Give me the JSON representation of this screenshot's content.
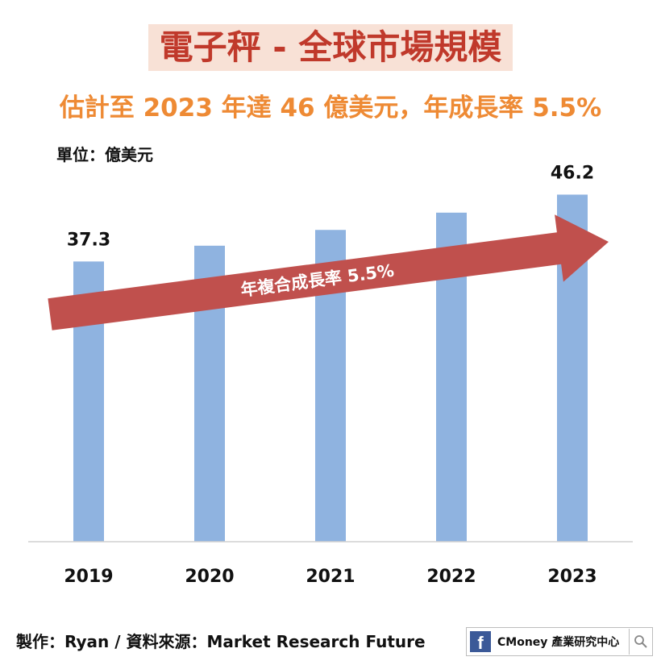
{
  "title": "電子秤 - 全球市場規模",
  "subtitle": "估計至 2023 年達 46 億美元，年成長率 5.5%",
  "unit_label": "單位：億美元",
  "footer": {
    "credit": "製作：Ryan / 資料來源：Market Research Future",
    "brand": "CMoney 產業研究中心"
  },
  "colors": {
    "bar": "#8fb3e0",
    "arrow": "#c0504d",
    "title": "#c0392b",
    "subtitle": "#ee8a34"
  },
  "chart_data": {
    "type": "bar",
    "categories": [
      "2019",
      "2020",
      "2021",
      "2022",
      "2023"
    ],
    "values": [
      37.3,
      39.4,
      41.5,
      43.8,
      46.2
    ],
    "data_labels": [
      "37.3",
      "",
      "",
      "",
      "46.2"
    ],
    "ylim": [
      0,
      48.5
    ],
    "grid": false,
    "annotation": "年複合成長率 5.5%"
  }
}
